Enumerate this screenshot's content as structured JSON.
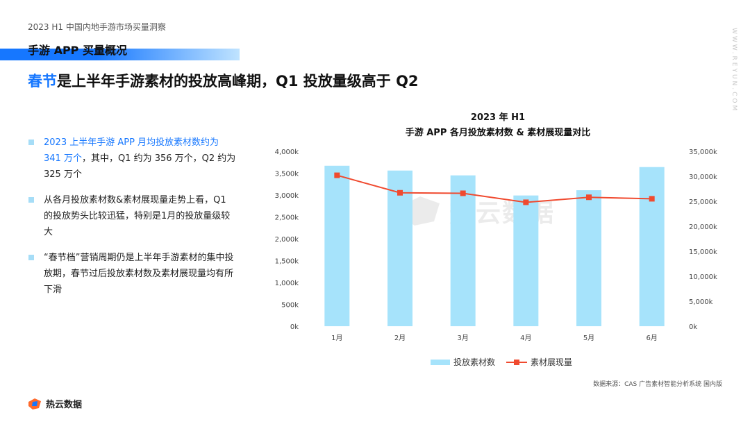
{
  "header": {
    "report_title": "2023 H1 中国内地手游市场买量洞察",
    "section_label": "手游 APP 买量概况",
    "headline_highlight": "春节",
    "headline_rest": "是上半年手游素材的投放高峰期，Q1 投放量级高于 Q2",
    "side_url": "WWW.REYUN.COM"
  },
  "bullets": [
    {
      "highlight": "2023 上半年手游 APP 月均投放素材数约为 341 万个",
      "text": "，其中，Q1 约为 356 万个，Q2 约为 325 万个"
    },
    {
      "highlight": "",
      "text": "从各月投放素材数&素材展现量走势上看，Q1 的投放势头比较迅猛，特别是1月的投放量级较大"
    },
    {
      "highlight": "",
      "text": "“春节档”营销周期仍是上半年手游素材的集中投放期，春节过后投放素材数及素材展现量均有所下滑"
    }
  ],
  "watermark": {
    "text": "热云数据"
  },
  "footer": {
    "source": "数据来源：CAS 广告素材智能分析系统 国内版",
    "logo_text": "热云数据"
  },
  "colors": {
    "bar": "#a6e3fb",
    "line": "#f04a2f",
    "accent": "#1677ff"
  },
  "chart_data": {
    "type": "bar",
    "title": "2023 年 H1",
    "subtitle": "手游 APP 各月投放素材数 & 素材展现量对比",
    "categories": [
      "1月",
      "2月",
      "3月",
      "4月",
      "5月",
      "6月"
    ],
    "series": [
      {
        "name": "投放素材数",
        "type": "bar",
        "axis": "left",
        "values": [
          3670,
          3560,
          3450,
          2990,
          3110,
          3640
        ]
      },
      {
        "name": "素材展现量",
        "type": "line",
        "axis": "right",
        "values": [
          30200,
          26700,
          26600,
          24800,
          25800,
          25500
        ]
      }
    ],
    "y_left": {
      "min": 0,
      "max": 4000,
      "ticks": [
        "0k",
        "500k",
        "1,000k",
        "1,500k",
        "2,000k",
        "2,500k",
        "3,000k",
        "3,500k",
        "4,000k"
      ]
    },
    "y_right": {
      "min": 0,
      "max": 35000,
      "ticks": [
        "0k",
        "5,000k",
        "10,000k",
        "15,000k",
        "20,000k",
        "25,000k",
        "30,000k",
        "35,000k"
      ]
    },
    "legend_position": "bottom",
    "grid": false
  }
}
